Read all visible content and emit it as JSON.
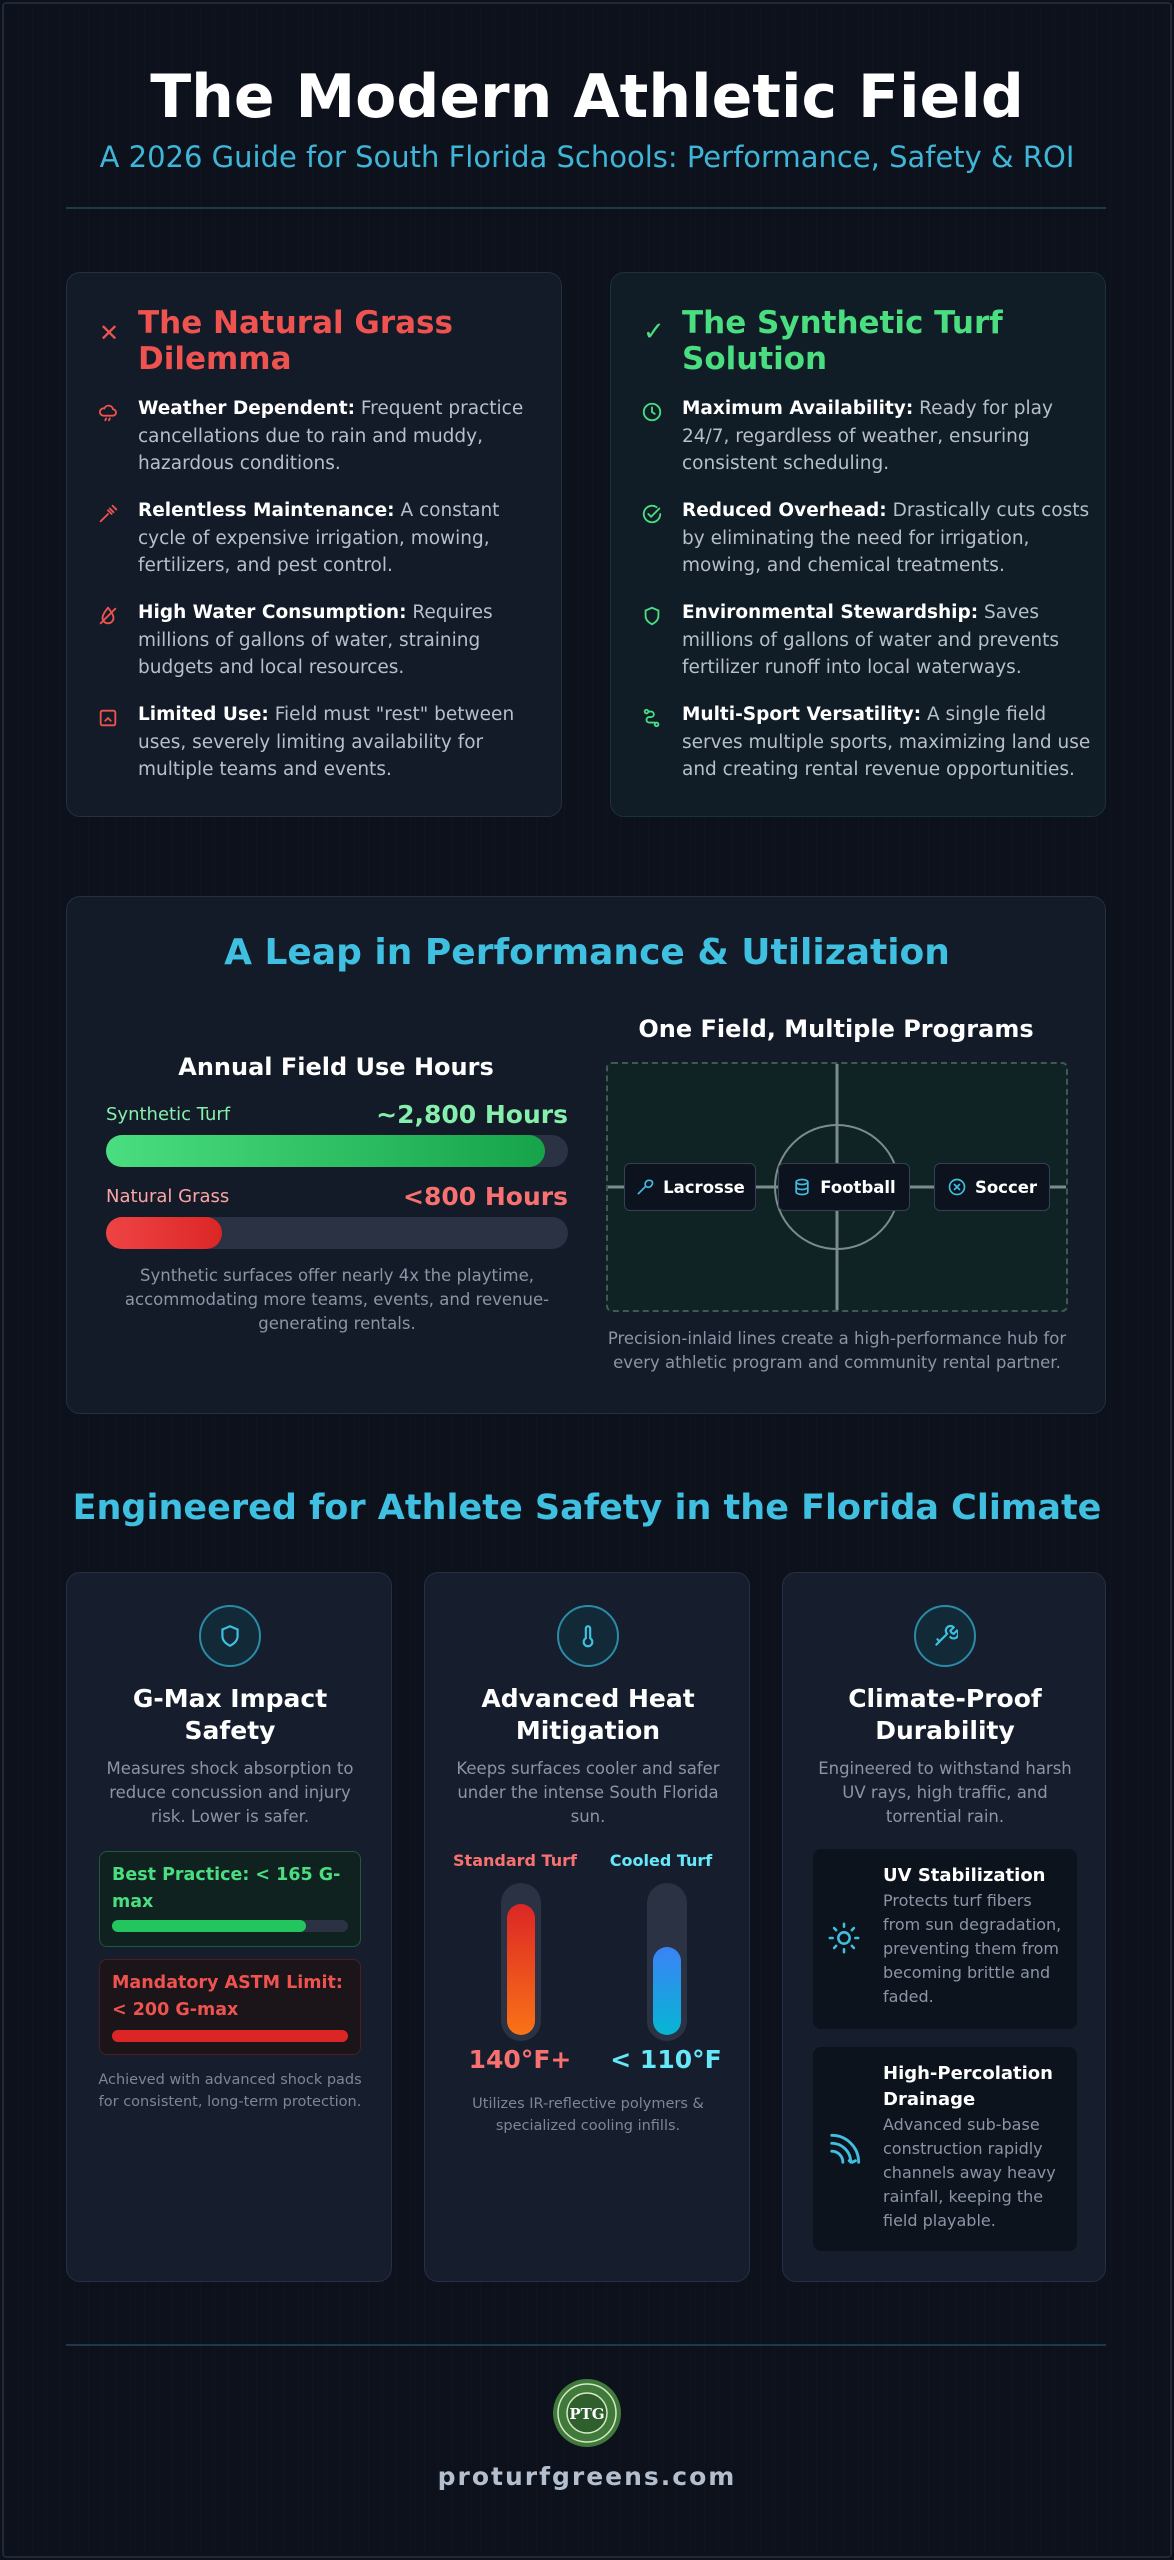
{
  "header": {
    "title": "The Modern Athletic Field",
    "subtitle": "A 2026 Guide for South Florida Schools: Performance, Safety & ROI"
  },
  "grass": {
    "title_line1": "The Natural Grass",
    "title_line2": "Dilemma",
    "items": [
      {
        "bold": "Weather Dependent:",
        "l1": " Frequent practice",
        "l2": "cancellations due to rain and muddy,",
        "l3": "hazardous conditions."
      },
      {
        "bold": "Relentless Maintenance:",
        "l1": " A constant",
        "l2": "cycle of expensive irrigation, mowing,",
        "l3": "fertilizers, and pest control."
      },
      {
        "bold": "High Water Consumption:",
        "l1": " Requires",
        "l2": "millions of gallons of water, straining",
        "l3": "budgets and local resources."
      },
      {
        "bold": "Limited Use:",
        "l1": " Field must \"rest\" between",
        "l2": "uses, severely limiting availability for",
        "l3": "multiple teams and events."
      }
    ]
  },
  "turf": {
    "title_line1": "The Synthetic Turf",
    "title_line2": "Solution",
    "items": [
      {
        "bold": "Maximum Availability:",
        "l1": " Ready for play",
        "l2": "24/7, regardless of weather, ensuring",
        "l3": "consistent scheduling."
      },
      {
        "bold": "Reduced Overhead:",
        "l1": " Drastically cuts costs",
        "l2": "by eliminating the need for irrigation,",
        "l3": "mowing, and chemical treatments."
      },
      {
        "bold": "Environmental Stewardship:",
        "l1": " Saves",
        "l2": "millions of gallons of water and prevents",
        "l3": "fertilizer runoff into local waterways."
      },
      {
        "bold": "Multi-Sport Versatility:",
        "l1": " A single field",
        "l2": "serves multiple sports, maximizing land use",
        "l3": "and creating rental revenue opportunities."
      }
    ]
  },
  "performance": {
    "title": "A Leap in Performance & Utilization",
    "hours_title": "Annual Field Use Hours",
    "synthetic_label": "Synthetic Turf",
    "synthetic_value": "~2,800 Hours",
    "synthetic_fill_fraction": 0.95,
    "grass_label": "Natural Grass",
    "grass_value": "<800 Hours",
    "grass_fill_fraction": 0.25,
    "hours_note_l1": "Synthetic surfaces offer nearly 4x the playtime,",
    "hours_note_l2": "accommodating more teams, events, and revenue-",
    "hours_note_l3": "generating rentals.",
    "field_title": "One Field, Multiple Programs",
    "sports": [
      "Lacrosse",
      "Football",
      "Soccer"
    ],
    "field_note_l1": "Precision-inlaid lines create a high-performance hub for",
    "field_note_l2": "every athletic program and community rental partner."
  },
  "safety": {
    "title": "Engineered for Athlete Safety in the Florida Climate",
    "gmax": {
      "title_l1": "G-Max Impact",
      "title_l2": "Safety",
      "desc_l1": "Measures shock absorption to",
      "desc_l2": "reduce concussion and injury",
      "desc_l3": "risk. Lower is safer.",
      "best_l1": "Best Practice: < 165 G-",
      "best_l2": "max",
      "best_fill_fraction": 0.82,
      "limit_l1": "Mandatory ASTM Limit:",
      "limit_l2": "< 200 G-max",
      "limit_fill_fraction": 1.0,
      "note_l1": "Achieved with advanced shock pads",
      "note_l2": "for consistent, long-term protection."
    },
    "heat": {
      "title_l1": "Advanced Heat",
      "title_l2": "Mitigation",
      "desc_l1": "Keeps surfaces cooler and safer",
      "desc_l2": "under the intense South Florida",
      "desc_l3": "sun.",
      "standard_label": "Standard Turf",
      "cooled_label": "Cooled Turf",
      "standard_temp": "140°F+",
      "cooled_temp": "< 110°F",
      "standard_fill_fraction": 0.9,
      "cooled_fill_fraction": 0.6,
      "note_l1": "Utilizes IR-reflective polymers &",
      "note_l2": "specialized cooling infills."
    },
    "climate": {
      "title_l1": "Climate-Proof",
      "title_l2": "Durability",
      "desc_l1": "Engineered to withstand harsh",
      "desc_l2": "UV rays, high traffic, and",
      "desc_l3": "torrential rain.",
      "uv_title": "UV Stabilization",
      "uv_l1": "Protects turf fibers",
      "uv_l2": "from sun degradation,",
      "uv_l3": "preventing them from",
      "uv_l4": "becoming brittle and",
      "uv_l5": "faded.",
      "drain_title_l1": "High-Percolation",
      "drain_title_l2": "Drainage",
      "drain_l1": "Advanced sub-base",
      "drain_l2": "construction rapidly",
      "drain_l3": "channels away heavy",
      "drain_l4": "rainfall, keeping the",
      "drain_l5": "field playable."
    }
  },
  "footer": {
    "url": "proturfgreens.com",
    "logo_letters": "PTG"
  },
  "colors": {
    "accent": "#3fc0e0",
    "red": "#ef5350",
    "green": "#4ade80",
    "background": "#0c111b"
  }
}
